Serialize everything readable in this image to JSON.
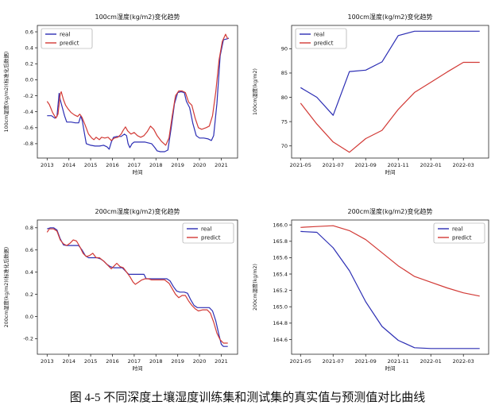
{
  "caption": "图 4-5 不同深度土壤湿度训练集和测试集的真实值与预测值对比曲线",
  "colors": {
    "real": "#2c2eb4",
    "predict": "#d23a36",
    "axis": "#262626",
    "legend_border": "#999999"
  },
  "chart_data": [
    {
      "type": "line",
      "name": "100cm-train",
      "title": "100cm湿度(kg/m2)变化趋势",
      "xlabel": "时间",
      "ylabel": "100cm湿度(kg/m2)(标准化后数据)",
      "xlim": [
        2012.55,
        2021.75
      ],
      "ylim": [
        -0.98,
        0.68
      ],
      "grid": false,
      "xticks": [
        {
          "v": 2013,
          "label": "2013"
        },
        {
          "v": 2014,
          "label": "2014"
        },
        {
          "v": 2015,
          "label": "2015"
        },
        {
          "v": 2016,
          "label": "2016"
        },
        {
          "v": 2017,
          "label": "2017"
        },
        {
          "v": 2018,
          "label": "2018"
        },
        {
          "v": 2019,
          "label": "2019"
        },
        {
          "v": 2020,
          "label": "2020"
        },
        {
          "v": 2021,
          "label": "2021"
        }
      ],
      "yticks": [
        {
          "v": -0.8,
          "label": "-0.8"
        },
        {
          "v": -0.6,
          "label": "-0.6"
        },
        {
          "v": -0.4,
          "label": "-0.4"
        },
        {
          "v": -0.2,
          "label": "-0.2"
        },
        {
          "v": 0.0,
          "label": "0.0"
        },
        {
          "v": 0.2,
          "label": "0.2"
        },
        {
          "v": 0.4,
          "label": "0.4"
        },
        {
          "v": 0.6,
          "label": "0.6"
        }
      ],
      "legend": {
        "position": "upper-left",
        "entries": [
          "real",
          "predict"
        ]
      },
      "series": [
        {
          "name": "real",
          "color": "real",
          "x": [
            2013.0,
            2013.2,
            2013.35,
            2013.45,
            2013.55,
            2013.6,
            2013.7,
            2013.8,
            2013.9,
            2014.1,
            2014.3,
            2014.45,
            2014.55,
            2014.62,
            2014.7,
            2014.8,
            2015.0,
            2015.2,
            2015.4,
            2015.6,
            2015.75,
            2015.85,
            2015.95,
            2016.05,
            2016.2,
            2016.4,
            2016.55,
            2016.65,
            2016.72,
            2016.8,
            2016.9,
            2017.0,
            2017.2,
            2017.5,
            2017.8,
            2017.95,
            2018.05,
            2018.2,
            2018.4,
            2018.55,
            2018.7,
            2018.85,
            2019.0,
            2019.15,
            2019.3,
            2019.4,
            2019.55,
            2019.7,
            2019.85,
            2020.0,
            2020.2,
            2020.4,
            2020.55,
            2020.65,
            2020.8,
            2020.95,
            2021.1,
            2021.25,
            2021.35
          ],
          "y": [
            -0.45,
            -0.45,
            -0.48,
            -0.46,
            -0.17,
            -0.25,
            -0.35,
            -0.45,
            -0.53,
            -0.53,
            -0.54,
            -0.54,
            -0.45,
            -0.52,
            -0.65,
            -0.8,
            -0.82,
            -0.83,
            -0.83,
            -0.82,
            -0.84,
            -0.87,
            -0.78,
            -0.72,
            -0.71,
            -0.71,
            -0.68,
            -0.7,
            -0.8,
            -0.85,
            -0.8,
            -0.78,
            -0.78,
            -0.78,
            -0.8,
            -0.85,
            -0.89,
            -0.9,
            -0.9,
            -0.88,
            -0.6,
            -0.3,
            -0.16,
            -0.15,
            -0.16,
            -0.27,
            -0.35,
            -0.55,
            -0.7,
            -0.73,
            -0.73,
            -0.74,
            -0.76,
            -0.7,
            -0.3,
            0.3,
            0.5,
            0.51,
            0.52
          ]
        },
        {
          "name": "predict",
          "color": "predict",
          "x": [
            2013.0,
            2013.1,
            2013.25,
            2013.4,
            2013.5,
            2013.6,
            2013.65,
            2013.75,
            2013.85,
            2013.95,
            2014.1,
            2014.25,
            2014.4,
            2014.5,
            2014.6,
            2014.75,
            2014.9,
            2015.05,
            2015.15,
            2015.25,
            2015.4,
            2015.5,
            2015.65,
            2015.8,
            2015.95,
            2016.1,
            2016.25,
            2016.4,
            2016.5,
            2016.6,
            2016.7,
            2016.85,
            2017.0,
            2017.15,
            2017.3,
            2017.45,
            2017.6,
            2017.75,
            2017.9,
            2018.05,
            2018.25,
            2018.45,
            2018.6,
            2018.75,
            2018.9,
            2019.05,
            2019.2,
            2019.35,
            2019.5,
            2019.65,
            2019.8,
            2019.95,
            2020.1,
            2020.3,
            2020.45,
            2020.6,
            2020.75,
            2020.9,
            2021.05,
            2021.2,
            2021.3
          ],
          "y": [
            -0.27,
            -0.31,
            -0.41,
            -0.48,
            -0.43,
            -0.18,
            -0.15,
            -0.25,
            -0.32,
            -0.36,
            -0.41,
            -0.44,
            -0.46,
            -0.43,
            -0.47,
            -0.57,
            -0.68,
            -0.73,
            -0.75,
            -0.72,
            -0.75,
            -0.72,
            -0.73,
            -0.72,
            -0.76,
            -0.73,
            -0.72,
            -0.68,
            -0.63,
            -0.59,
            -0.64,
            -0.68,
            -0.66,
            -0.7,
            -0.72,
            -0.7,
            -0.65,
            -0.58,
            -0.62,
            -0.7,
            -0.77,
            -0.82,
            -0.73,
            -0.45,
            -0.2,
            -0.14,
            -0.14,
            -0.16,
            -0.28,
            -0.32,
            -0.48,
            -0.6,
            -0.62,
            -0.6,
            -0.58,
            -0.45,
            -0.15,
            0.25,
            0.48,
            0.57,
            0.51
          ]
        }
      ]
    },
    {
      "type": "line",
      "name": "100cm-test",
      "title": "100cm湿度(kg/m2)变化趋势",
      "xlabel": "时间",
      "ylabel": "100cm湿度(kg/m2)",
      "categories": [
        "2021-05",
        "2021-06",
        "2021-07",
        "2021-08",
        "2021-09",
        "2021-10",
        "2021-11",
        "2021-12",
        "2022-01",
        "2022-02",
        "2022-03",
        "2022-04"
      ],
      "xlim": [
        -0.55,
        11.55
      ],
      "ylim": [
        67.5,
        94.8
      ],
      "grid": false,
      "xticks": [
        {
          "v": 0,
          "label": "2021-05"
        },
        {
          "v": 2,
          "label": "2021-07"
        },
        {
          "v": 4,
          "label": "2021-09"
        },
        {
          "v": 6,
          "label": "2021-11"
        },
        {
          "v": 8,
          "label": "2022-01"
        },
        {
          "v": 10,
          "label": "2022-03"
        }
      ],
      "yticks": [
        {
          "v": 70,
          "label": "70"
        },
        {
          "v": 75,
          "label": "75"
        },
        {
          "v": 80,
          "label": "80"
        },
        {
          "v": 85,
          "label": "85"
        },
        {
          "v": 90,
          "label": "90"
        }
      ],
      "legend": {
        "position": "upper-left",
        "entries": [
          "real",
          "predict"
        ]
      },
      "series": [
        {
          "name": "real",
          "color": "real",
          "x": [
            0,
            1,
            2,
            3,
            4,
            5,
            6,
            7,
            8,
            9,
            10,
            11
          ],
          "y": [
            82.0,
            80.0,
            76.3,
            85.3,
            85.6,
            87.3,
            92.7,
            93.6,
            93.6,
            93.6,
            93.6,
            93.6
          ]
        },
        {
          "name": "predict",
          "color": "predict",
          "x": [
            0,
            1,
            2,
            3,
            4,
            5,
            6,
            7,
            8,
            9,
            10,
            11
          ],
          "y": [
            78.8,
            74.5,
            70.8,
            68.7,
            71.5,
            73.2,
            77.5,
            81.0,
            83.1,
            85.2,
            87.2,
            87.2
          ]
        }
      ]
    },
    {
      "type": "line",
      "name": "200cm-train",
      "title": "200cm湿度(kg/m2)变化趋势",
      "xlabel": "时间",
      "ylabel": "200cm湿度(kg/m2)(标准化后数据)",
      "xlim": [
        2012.55,
        2021.75
      ],
      "ylim": [
        -0.34,
        0.87
      ],
      "grid": false,
      "xticks": [
        {
          "v": 2013,
          "label": "2013"
        },
        {
          "v": 2014,
          "label": "2014"
        },
        {
          "v": 2015,
          "label": "2015"
        },
        {
          "v": 2016,
          "label": "2016"
        },
        {
          "v": 2017,
          "label": "2017"
        },
        {
          "v": 2018,
          "label": "2018"
        },
        {
          "v": 2019,
          "label": "2019"
        },
        {
          "v": 2020,
          "label": "2020"
        },
        {
          "v": 2021,
          "label": "2021"
        }
      ],
      "yticks": [
        {
          "v": -0.2,
          "label": "-0.2"
        },
        {
          "v": 0.0,
          "label": "0.0"
        },
        {
          "v": 0.2,
          "label": "0.2"
        },
        {
          "v": 0.4,
          "label": "0.4"
        },
        {
          "v": 0.6,
          "label": "0.6"
        },
        {
          "v": 0.8,
          "label": "0.8"
        }
      ],
      "legend": {
        "position": "upper-right",
        "entries": [
          "real",
          "predict"
        ]
      },
      "series": [
        {
          "name": "real",
          "color": "real",
          "x": [
            2013.0,
            2013.15,
            2013.3,
            2013.45,
            2013.6,
            2013.75,
            2013.9,
            2014.1,
            2014.3,
            2014.45,
            2014.6,
            2014.75,
            2014.9,
            2015.1,
            2015.3,
            2015.45,
            2015.6,
            2015.75,
            2015.9,
            2016.05,
            2016.25,
            2016.45,
            2016.6,
            2016.75,
            2016.9,
            2017.1,
            2017.3,
            2017.45,
            2017.55,
            2017.7,
            2017.9,
            2018.1,
            2018.3,
            2018.5,
            2018.65,
            2018.8,
            2018.95,
            2019.1,
            2019.3,
            2019.45,
            2019.6,
            2019.75,
            2019.9,
            2020.1,
            2020.3,
            2020.45,
            2020.6,
            2020.75,
            2020.9,
            2021.0,
            2021.1,
            2021.3
          ],
          "y": [
            0.79,
            0.8,
            0.8,
            0.78,
            0.7,
            0.645,
            0.64,
            0.64,
            0.64,
            0.64,
            0.6,
            0.55,
            0.53,
            0.53,
            0.53,
            0.52,
            0.5,
            0.47,
            0.45,
            0.44,
            0.44,
            0.44,
            0.41,
            0.38,
            0.38,
            0.38,
            0.38,
            0.38,
            0.34,
            0.34,
            0.34,
            0.34,
            0.34,
            0.34,
            0.32,
            0.27,
            0.23,
            0.22,
            0.22,
            0.21,
            0.15,
            0.1,
            0.08,
            0.08,
            0.08,
            0.08,
            0.05,
            -0.04,
            -0.17,
            -0.25,
            -0.27,
            -0.27
          ]
        },
        {
          "name": "predict",
          "color": "predict",
          "x": [
            2013.0,
            2013.1,
            2013.3,
            2013.45,
            2013.6,
            2013.75,
            2013.9,
            2014.05,
            2014.2,
            2014.35,
            2014.5,
            2014.65,
            2014.8,
            2014.95,
            2015.1,
            2015.25,
            2015.4,
            2015.6,
            2015.8,
            2015.95,
            2016.1,
            2016.2,
            2016.35,
            2016.5,
            2016.65,
            2016.8,
            2016.95,
            2017.05,
            2017.2,
            2017.35,
            2017.5,
            2017.65,
            2017.8,
            2018.0,
            2018.2,
            2018.4,
            2018.6,
            2018.75,
            2018.9,
            2019.05,
            2019.2,
            2019.35,
            2019.5,
            2019.65,
            2019.8,
            2019.95,
            2020.15,
            2020.35,
            2020.5,
            2020.65,
            2020.8,
            2020.95,
            2021.1,
            2021.3
          ],
          "y": [
            0.76,
            0.79,
            0.79,
            0.77,
            0.69,
            0.655,
            0.64,
            0.66,
            0.69,
            0.68,
            0.63,
            0.57,
            0.54,
            0.55,
            0.57,
            0.53,
            0.53,
            0.5,
            0.46,
            0.43,
            0.46,
            0.48,
            0.45,
            0.44,
            0.4,
            0.36,
            0.31,
            0.29,
            0.31,
            0.33,
            0.34,
            0.34,
            0.33,
            0.33,
            0.33,
            0.33,
            0.3,
            0.25,
            0.2,
            0.17,
            0.19,
            0.19,
            0.14,
            0.1,
            0.07,
            0.05,
            0.06,
            0.06,
            0.03,
            -0.05,
            -0.15,
            -0.21,
            -0.24,
            -0.24
          ]
        }
      ]
    },
    {
      "type": "line",
      "name": "200cm-test",
      "title": "200cm湿度(kg/m2)变化趋势",
      "xlabel": "时间",
      "ylabel": "200cm湿度(kg/m2)",
      "categories": [
        "2021-05",
        "2021-06",
        "2021-07",
        "2021-08",
        "2021-09",
        "2021-10",
        "2021-11",
        "2021-12",
        "2022-01",
        "2022-02",
        "2022-03",
        "2022-04"
      ],
      "xlim": [
        -0.55,
        11.55
      ],
      "ylim": [
        164.42,
        166.06
      ],
      "grid": false,
      "xticks": [
        {
          "v": 0,
          "label": "2021-05"
        },
        {
          "v": 2,
          "label": "2021-07"
        },
        {
          "v": 4,
          "label": "2021-09"
        },
        {
          "v": 6,
          "label": "2021-11"
        },
        {
          "v": 8,
          "label": "2022-01"
        },
        {
          "v": 10,
          "label": "2022-03"
        }
      ],
      "yticks": [
        {
          "v": 164.6,
          "label": "164.6"
        },
        {
          "v": 164.8,
          "label": "164.8"
        },
        {
          "v": 165.0,
          "label": "165.0"
        },
        {
          "v": 165.2,
          "label": "165.2"
        },
        {
          "v": 165.4,
          "label": "165.4"
        },
        {
          "v": 165.6,
          "label": "165.6"
        },
        {
          "v": 165.8,
          "label": "165.8"
        },
        {
          "v": 166.0,
          "label": "166.0"
        }
      ],
      "legend": {
        "position": "upper-right",
        "entries": [
          "real",
          "predict"
        ]
      },
      "series": [
        {
          "name": "real",
          "color": "real",
          "x": [
            0,
            1,
            2,
            3,
            4,
            5,
            6,
            7,
            8,
            9,
            10,
            11
          ],
          "y": [
            165.92,
            165.91,
            165.72,
            165.44,
            165.06,
            164.76,
            164.59,
            164.5,
            164.49,
            164.49,
            164.49,
            164.49
          ]
        },
        {
          "name": "predict",
          "color": "predict",
          "x": [
            0,
            1,
            2,
            3,
            4,
            5,
            6,
            7,
            8,
            9,
            10,
            11
          ],
          "y": [
            165.97,
            165.98,
            165.99,
            165.93,
            165.82,
            165.66,
            165.5,
            165.37,
            165.3,
            165.23,
            165.17,
            165.13
          ]
        }
      ]
    }
  ]
}
